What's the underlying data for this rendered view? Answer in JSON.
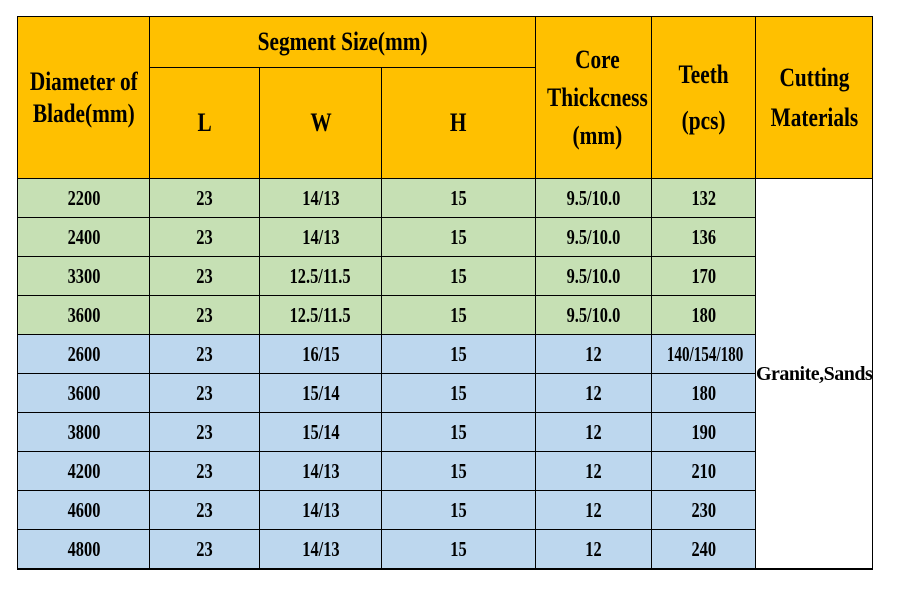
{
  "header": {
    "diameter": [
      "Diameter of",
      "Blade(mm)"
    ],
    "segment_size": "Segment Size(mm)",
    "l": "L",
    "w": "W",
    "h": "H",
    "core_thickness": [
      "Core",
      "Thickcness",
      "(mm)"
    ],
    "teeth": [
      "Teeth",
      "(pcs)"
    ],
    "cutting_materials": [
      "Cutting",
      "Materials"
    ]
  },
  "rows": [
    {
      "diameter": "2200",
      "l": "23",
      "w": "14/13",
      "h": "15",
      "core": "9.5/10.0",
      "teeth": "132"
    },
    {
      "diameter": "2400",
      "l": "23",
      "w": "14/13",
      "h": "15",
      "core": "9.5/10.0",
      "teeth": "136"
    },
    {
      "diameter": "3300",
      "l": "23",
      "w": "12.5/11.5",
      "h": "15",
      "core": "9.5/10.0",
      "teeth": "170"
    },
    {
      "diameter": "3600",
      "l": "23",
      "w": "12.5/11.5",
      "h": "15",
      "core": "9.5/10.0",
      "teeth": "180"
    },
    {
      "diameter": "2600",
      "l": "23",
      "w": "16/15",
      "h": "15",
      "core": "12",
      "teeth": "140/154/180"
    },
    {
      "diameter": "3600",
      "l": "23",
      "w": "15/14",
      "h": "15",
      "core": "12",
      "teeth": "180"
    },
    {
      "diameter": "3800",
      "l": "23",
      "w": "15/14",
      "h": "15",
      "core": "12",
      "teeth": "190"
    },
    {
      "diameter": "4200",
      "l": "23",
      "w": "14/13",
      "h": "15",
      "core": "12",
      "teeth": "210"
    },
    {
      "diameter": "4600",
      "l": "23",
      "w": "14/13",
      "h": "15",
      "core": "12",
      "teeth": "230"
    },
    {
      "diameter": "4800",
      "l": "23",
      "w": "14/13",
      "h": "15",
      "core": "12",
      "teeth": "240"
    }
  ],
  "cutting_materials_value": "Granite,Sandstone Quarry",
  "colors": {
    "header_bg": "#ffc000",
    "group1_bg": "#c6e0b4",
    "group2_bg": "#bdd7ee"
  }
}
